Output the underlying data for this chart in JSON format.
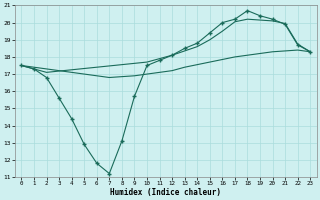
{
  "xlabel": "Humidex (Indice chaleur)",
  "xlim": [
    -0.5,
    23.5
  ],
  "ylim": [
    11,
    21
  ],
  "yticks": [
    11,
    12,
    13,
    14,
    15,
    16,
    17,
    18,
    19,
    20,
    21
  ],
  "xticks": [
    0,
    1,
    2,
    3,
    4,
    5,
    6,
    7,
    8,
    9,
    10,
    11,
    12,
    13,
    14,
    15,
    16,
    17,
    18,
    19,
    20,
    21,
    22,
    23
  ],
  "bg_color": "#cff0f0",
  "line_color": "#1a6b5a",
  "grid_color": "#aadddd",
  "line_dip_x": [
    0,
    1,
    2,
    3,
    4,
    5,
    6,
    7,
    8,
    9,
    10,
    11,
    12,
    13,
    14,
    15,
    16,
    17,
    18,
    19,
    20,
    21,
    22,
    23
  ],
  "line_dip_y": [
    17.5,
    17.3,
    16.8,
    15.6,
    14.4,
    12.9,
    11.8,
    11.2,
    13.1,
    15.7,
    17.5,
    17.8,
    18.1,
    18.5,
    18.8,
    19.4,
    20.0,
    20.2,
    20.7,
    20.4,
    20.2,
    19.9,
    18.7,
    18.3
  ],
  "line_upper_x": [
    0,
    1,
    2,
    10,
    11,
    12,
    13,
    14,
    15,
    16,
    17,
    18,
    19,
    20,
    21,
    22,
    23
  ],
  "line_upper_y": [
    17.5,
    17.3,
    17.1,
    17.7,
    17.9,
    18.1,
    18.35,
    18.6,
    19.0,
    19.5,
    20.05,
    20.2,
    20.15,
    20.1,
    19.95,
    18.75,
    18.3
  ],
  "line_lower_x": [
    0,
    1,
    2,
    3,
    4,
    5,
    6,
    7,
    8,
    9,
    10,
    11,
    12,
    13,
    14,
    15,
    16,
    17,
    18,
    19,
    20,
    21,
    22,
    23
  ],
  "line_lower_y": [
    17.5,
    17.4,
    17.3,
    17.2,
    17.1,
    17.0,
    16.9,
    16.8,
    16.85,
    16.9,
    17.0,
    17.1,
    17.2,
    17.4,
    17.55,
    17.7,
    17.85,
    18.0,
    18.1,
    18.2,
    18.3,
    18.35,
    18.4,
    18.3
  ]
}
